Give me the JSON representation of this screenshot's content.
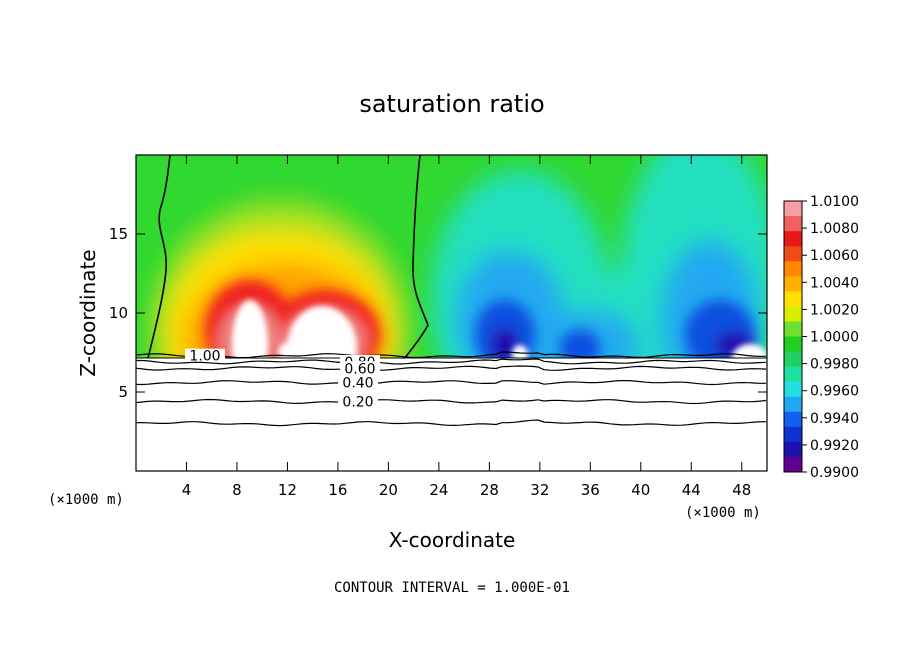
{
  "chart_data": {
    "type": "heatmap",
    "title": "saturation ratio",
    "xlabel": "X-coordinate",
    "ylabel": "Z-coordinate",
    "x_unit": "(×1000 m)",
    "xlim": [
      0,
      50
    ],
    "ylim": [
      0,
      20
    ],
    "x_ticks": [
      4,
      8,
      12,
      16,
      20,
      24,
      28,
      32,
      36,
      40,
      44,
      48
    ],
    "y_ticks": [
      5,
      10,
      15
    ],
    "colorbar": {
      "min": 0.99,
      "max": 1.01,
      "labels": [
        "1.0100",
        "1.0080",
        "1.0060",
        "1.0040",
        "1.0020",
        "1.0000",
        "0.9980",
        "0.9960",
        "0.9940",
        "0.9920",
        "0.9900"
      ],
      "colors": [
        "#f5a0a0",
        "#f06060",
        "#e81818",
        "#f04a18",
        "#ff8800",
        "#ffb000",
        "#ffe000",
        "#d8f000",
        "#70e030",
        "#20d020",
        "#20d060",
        "#20e0a0",
        "#20e0e0",
        "#20a8f0",
        "#1060f0",
        "#1030d0",
        "#2010b0",
        "#600090"
      ]
    },
    "contour_lines": [
      {
        "label": "1.00",
        "z": 7.3
      },
      {
        "label": "0.80",
        "z": 6.9
      },
      {
        "label": "0.60",
        "z": 6.5
      },
      {
        "label": "0.40",
        "z": 5.6
      },
      {
        "label": "0.20",
        "z": 4.4
      },
      {
        "label": "",
        "z": 3.0
      }
    ],
    "cloud_base_z": 7.3
  },
  "footer": "CONTOUR INTERVAL = 1.000E-01"
}
